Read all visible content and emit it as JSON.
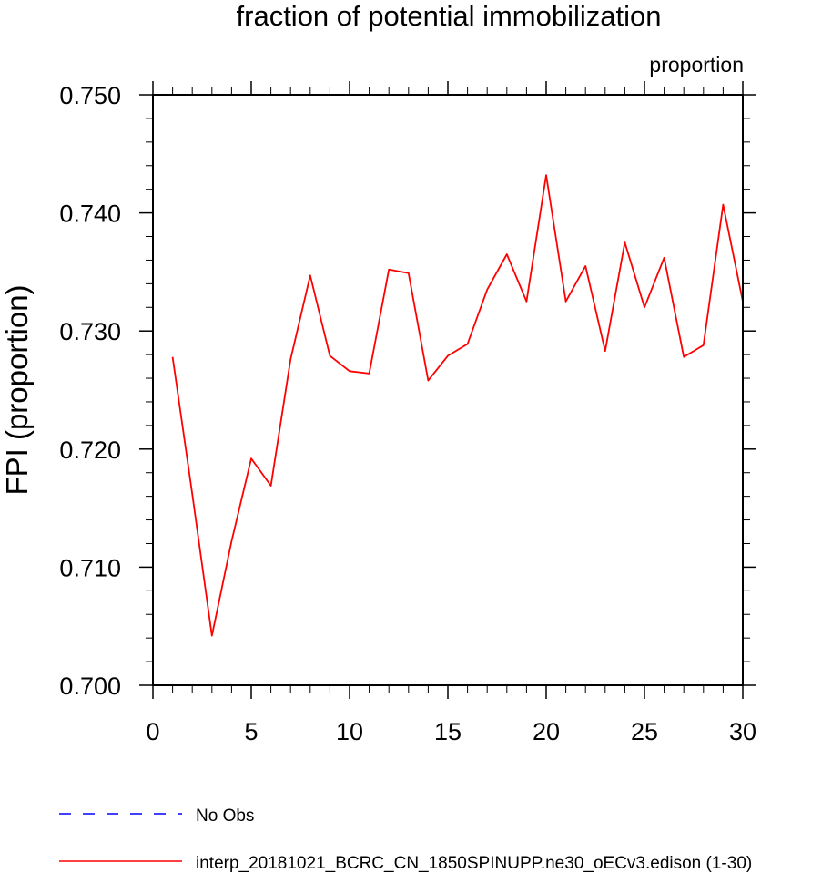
{
  "chart_data": {
    "type": "line",
    "title": "fraction of potential immobilization",
    "units_label": "proportion",
    "ylabel": "FPI  (proportion)",
    "xlabel": "",
    "xlim": [
      0,
      30
    ],
    "ylim": [
      0.7,
      0.75
    ],
    "x_ticks": [
      0,
      5,
      10,
      15,
      20,
      25,
      30
    ],
    "x_tick_labels": [
      "0",
      "5",
      "10",
      "15",
      "20",
      "25",
      "30"
    ],
    "y_ticks": [
      0.7,
      0.71,
      0.72,
      0.73,
      0.74,
      0.75
    ],
    "y_tick_labels": [
      "0.700",
      "0.710",
      "0.720",
      "0.730",
      "0.740",
      "0.750"
    ],
    "grid": false,
    "series": [
      {
        "name": "interp_20181021_BCRC_CN_1850SPINUPP.ne30_oECv3.edison (1-30)",
        "color": "#ff0000",
        "dash": "solid",
        "x": [
          1,
          2,
          3,
          4,
          5,
          6,
          7,
          8,
          9,
          10,
          11,
          12,
          13,
          14,
          15,
          16,
          17,
          18,
          19,
          20,
          21,
          22,
          23,
          24,
          25,
          26,
          27,
          28,
          29,
          30
        ],
        "values": [
          0.7278,
          0.7162,
          0.7042,
          0.7122,
          0.7192,
          0.7169,
          0.7276,
          0.7347,
          0.7279,
          0.7266,
          0.7264,
          0.7352,
          0.7349,
          0.7258,
          0.7279,
          0.7289,
          0.7335,
          0.7365,
          0.7325,
          0.7432,
          0.7325,
          0.7355,
          0.7283,
          0.7375,
          0.732,
          0.7362,
          0.7278,
          0.7288,
          0.7407,
          0.7325
        ]
      }
    ],
    "legend": [
      {
        "label": "No Obs",
        "color": "#0000ff",
        "dash": "dashed"
      },
      {
        "label": "interp_20181021_BCRC_CN_1850SPINUPP.ne30_oECv3.edison (1-30)",
        "color": "#ff0000",
        "dash": "solid"
      }
    ]
  }
}
